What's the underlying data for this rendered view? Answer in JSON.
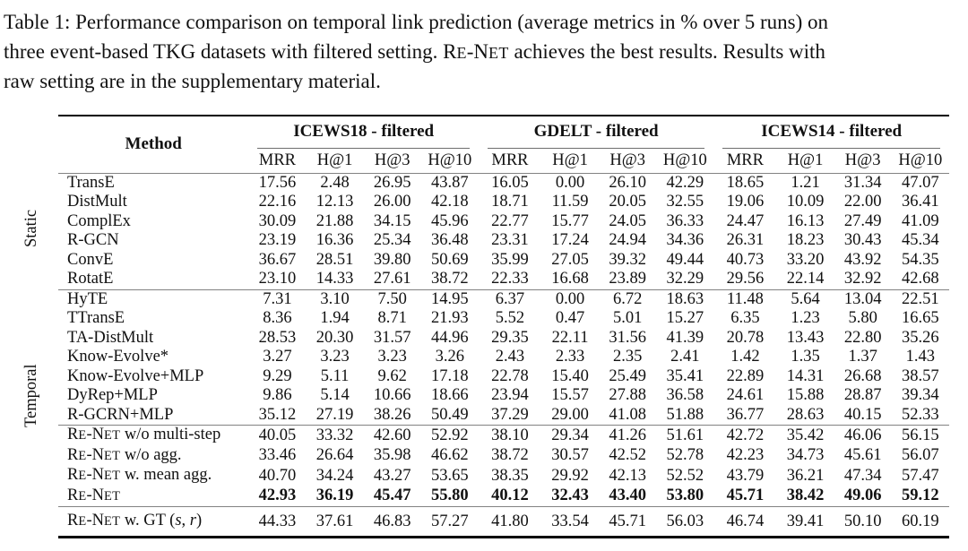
{
  "caption": {
    "lines": [
      "Table 1: Performance comparison on temporal link prediction (average metrics in % over 5 runs) on",
      "three event-based TKG datasets with filtered setting. RE-NET achieves the best results. Results with",
      "raw setting are in the supplementary material."
    ]
  },
  "colors": {
    "text": "#111111",
    "rule_heavy": "#000000",
    "rule_light": "#828282"
  },
  "table": {
    "method_header": "Method",
    "group_headers": [
      "ICEWS18 - filtered",
      "GDELT - filtered",
      "ICEWS14 - filtered"
    ],
    "metric_headers": [
      "MRR",
      "H@1",
      "H@3",
      "H@10"
    ],
    "row_group_labels": {
      "static": "Static",
      "temporal": "Temporal"
    },
    "sections": [
      {
        "id": "static",
        "rows": [
          {
            "method": "TransE",
            "bold": false,
            "values": [
              "17.56",
              "2.48",
              "26.95",
              "43.87",
              "16.05",
              "0.00",
              "26.10",
              "42.29",
              "18.65",
              "1.21",
              "31.34",
              "47.07"
            ]
          },
          {
            "method": "DistMult",
            "bold": false,
            "values": [
              "22.16",
              "12.13",
              "26.00",
              "42.18",
              "18.71",
              "11.59",
              "20.05",
              "32.55",
              "19.06",
              "10.09",
              "22.00",
              "36.41"
            ]
          },
          {
            "method": "ComplEx",
            "bold": false,
            "values": [
              "30.09",
              "21.88",
              "34.15",
              "45.96",
              "22.77",
              "15.77",
              "24.05",
              "36.33",
              "24.47",
              "16.13",
              "27.49",
              "41.09"
            ]
          },
          {
            "method": "R-GCN",
            "bold": false,
            "values": [
              "23.19",
              "16.36",
              "25.34",
              "36.48",
              "23.31",
              "17.24",
              "24.94",
              "34.36",
              "26.31",
              "18.23",
              "30.43",
              "45.34"
            ]
          },
          {
            "method": "ConvE",
            "bold": false,
            "values": [
              "36.67",
              "28.51",
              "39.80",
              "50.69",
              "35.99",
              "27.05",
              "39.32",
              "49.44",
              "40.73",
              "33.20",
              "43.92",
              "54.35"
            ]
          },
          {
            "method": "RotatE",
            "bold": false,
            "values": [
              "23.10",
              "14.33",
              "27.61",
              "38.72",
              "22.33",
              "16.68",
              "23.89",
              "32.29",
              "29.56",
              "22.14",
              "32.92",
              "42.68"
            ]
          }
        ]
      },
      {
        "id": "temporal",
        "rows": [
          {
            "method": "HyTE",
            "bold": false,
            "values": [
              "7.31",
              "3.10",
              "7.50",
              "14.95",
              "6.37",
              "0.00",
              "6.72",
              "18.63",
              "11.48",
              "5.64",
              "13.04",
              "22.51"
            ]
          },
          {
            "method": "TTransE",
            "bold": false,
            "values": [
              "8.36",
              "1.94",
              "8.71",
              "21.93",
              "5.52",
              "0.47",
              "5.01",
              "15.27",
              "6.35",
              "1.23",
              "5.80",
              "16.65"
            ]
          },
          {
            "method": "TA-DistMult",
            "bold": false,
            "values": [
              "28.53",
              "20.30",
              "31.57",
              "44.96",
              "29.35",
              "22.11",
              "31.56",
              "41.39",
              "20.78",
              "13.43",
              "22.80",
              "35.26"
            ]
          },
          {
            "method": "Know-Evolve*",
            "bold": false,
            "values": [
              "3.27",
              "3.23",
              "3.23",
              "3.26",
              "2.43",
              "2.33",
              "2.35",
              "2.41",
              "1.42",
              "1.35",
              "1.37",
              "1.43"
            ]
          },
          {
            "method": "Know-Evolve+MLP",
            "bold": false,
            "values": [
              "9.29",
              "5.11",
              "9.62",
              "17.18",
              "22.78",
              "15.40",
              "25.49",
              "35.41",
              "22.89",
              "14.31",
              "26.68",
              "38.57"
            ]
          },
          {
            "method": "DyRep+MLP",
            "bold": false,
            "values": [
              "9.86",
              "5.14",
              "10.66",
              "18.66",
              "23.94",
              "15.57",
              "27.88",
              "36.58",
              "24.61",
              "15.88",
              "28.87",
              "39.34"
            ]
          },
          {
            "method": "R-GCRN+MLP",
            "bold": false,
            "values": [
              "35.12",
              "27.19",
              "38.26",
              "50.49",
              "37.29",
              "29.00",
              "41.08",
              "51.88",
              "36.77",
              "28.63",
              "40.15",
              "52.33"
            ]
          }
        ]
      },
      {
        "id": "renet",
        "rows": [
          {
            "method": "RE-NET w/o multi-step",
            "bold": false,
            "values": [
              "40.05",
              "33.32",
              "42.60",
              "52.92",
              "38.10",
              "29.34",
              "41.26",
              "51.61",
              "42.72",
              "35.42",
              "46.06",
              "56.15"
            ]
          },
          {
            "method": "RE-NET w/o agg.",
            "bold": false,
            "values": [
              "33.46",
              "26.64",
              "35.98",
              "46.62",
              "38.72",
              "30.57",
              "42.52",
              "52.78",
              "42.23",
              "34.73",
              "45.61",
              "56.07"
            ]
          },
          {
            "method": "RE-NET w. mean agg.",
            "bold": false,
            "values": [
              "40.70",
              "34.24",
              "43.27",
              "53.65",
              "38.35",
              "29.92",
              "42.13",
              "52.52",
              "43.79",
              "36.21",
              "47.34",
              "57.47"
            ]
          },
          {
            "method": "RE-NET",
            "bold": true,
            "values": [
              "42.93",
              "36.19",
              "45.47",
              "55.80",
              "40.12",
              "32.43",
              "43.40",
              "53.80",
              "45.71",
              "38.42",
              "49.06",
              "59.12"
            ]
          }
        ]
      },
      {
        "id": "footer",
        "rows": [
          {
            "method": "RE-NET w. GT (s, r)",
            "bold": false,
            "values": [
              "44.33",
              "37.61",
              "46.83",
              "57.27",
              "41.80",
              "33.54",
              "45.71",
              "56.03",
              "46.74",
              "39.41",
              "50.10",
              "60.19"
            ]
          }
        ]
      }
    ]
  }
}
